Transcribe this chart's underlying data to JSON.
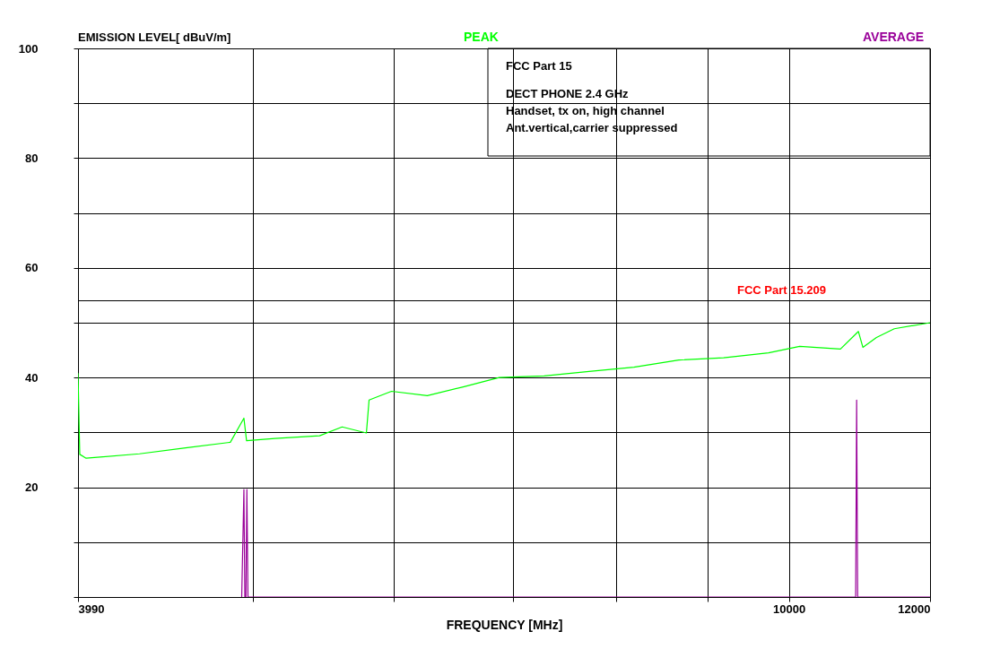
{
  "chart_data": {
    "type": "line",
    "ylabel": "EMISSION LEVEL[              dBuV/m]",
    "xlabel": "FREQUENCY [MHz]",
    "log": "x",
    "xlim": [
      3990,
      12000
    ],
    "xticks": [
      3990,
      {
        "value": 5000,
        "label": null
      },
      {
        "value": 6000,
        "label": null
      },
      {
        "value": 7000,
        "label": null
      },
      {
        "value": 8000,
        "label": null
      },
      {
        "value": 9000,
        "label": null
      },
      10000,
      12000
    ],
    "ylim": [
      0,
      100
    ],
    "yticks": [
      {
        "value": 0,
        "label": null
      },
      {
        "value": 10,
        "label": null
      },
      20,
      {
        "value": 30,
        "label": null
      },
      40,
      {
        "value": 50,
        "label": null
      },
      60,
      {
        "value": 70,
        "label": null
      },
      80,
      {
        "value": 90,
        "label": null
      },
      100
    ],
    "grid": true,
    "legend": "top",
    "line_style": "solid",
    "series": [
      {
        "name": "PEAK",
        "color": "#00ff00",
        "x": [
          3990,
          3999,
          4032,
          4320,
          4585,
          4858,
          4944,
          4961,
          5146,
          5452,
          5613,
          5792,
          5812,
          5983,
          6266,
          6564,
          6877,
          7288,
          7723,
          8184,
          8673,
          9190,
          9739,
          10140,
          10688,
          10939,
          11003,
          11197,
          11458,
          12000
        ],
        "values": [
          40.8,
          26,
          25.3,
          26.1,
          27.2,
          28.2,
          32.6,
          28.5,
          28.9,
          29.4,
          31,
          29.9,
          35.9,
          37.5,
          36.7,
          38.3,
          40,
          40.3,
          41.1,
          41.9,
          43.2,
          43.6,
          44.5,
          45.7,
          45.2,
          48.4,
          45.5,
          47.3,
          48.9,
          50
        ]
      },
      {
        "name": "AVERAGE",
        "color": "#990099",
        "x": [
          4930,
          4944,
          4950,
          4957,
          4963,
          4970,
          10900,
          10914,
          10928,
          12000
        ],
        "values": [
          0,
          19.6,
          0,
          0,
          19.6,
          0,
          0,
          35.9,
          0,
          0
        ]
      }
    ],
    "ref_lines": [
      {
        "axis": "y",
        "value": 54,
        "label": "FCC Part 15.209",
        "color": "#000000"
      }
    ],
    "annotations": [
      "FCC Part 15",
      "DECT PHONE 2.4 GHz",
      "Handset, tx on, high channel",
      "Ant.vertical,carrier suppressed"
    ]
  }
}
